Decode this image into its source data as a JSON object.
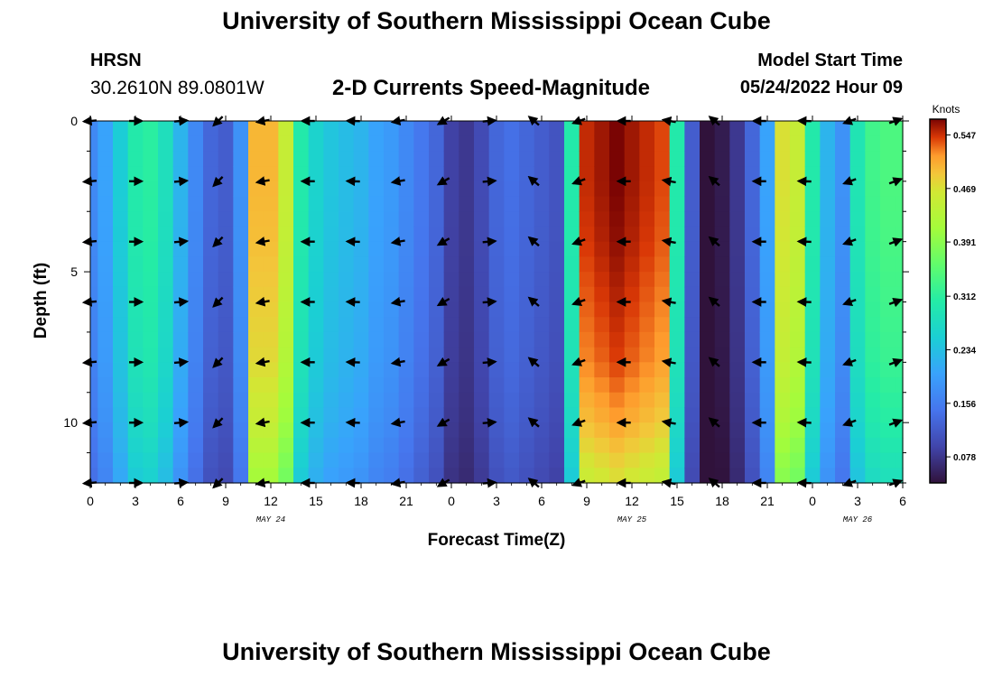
{
  "header": {
    "title": "University of Southern Mississippi Ocean Cube",
    "station_id": "HRSN",
    "station_coords": "30.2610N  89.0801W",
    "subtitle": "2-D Currents Speed-Magnitude",
    "model_start_label": "Model Start Time",
    "model_start_value": "05/24/2022 Hour 09"
  },
  "footer": {
    "title": "University of Southern Mississippi Ocean Cube"
  },
  "chart_data": {
    "type": "heatmap",
    "title": "2-D Currents Speed-Magnitude",
    "xlabel": "Forecast Time(Z)",
    "ylabel": "Depth (ft)",
    "x_range": [
      0,
      54
    ],
    "y_range": [
      0,
      12
    ],
    "y_inverted": true,
    "x_tick_labels": [
      "0",
      "3",
      "6",
      "9",
      "12",
      "15",
      "18",
      "21",
      "0",
      "3",
      "6",
      "9",
      "12",
      "15",
      "18",
      "21",
      "0",
      "3",
      "6"
    ],
    "y_tick_labels": [
      "0",
      "5",
      "10"
    ],
    "y_tick_values": [
      0,
      5,
      10
    ],
    "date_labels": [
      {
        "label": "MAY 24",
        "hour": 12
      },
      {
        "label": "MAY 25",
        "hour": 36
      },
      {
        "label": "MAY 26",
        "hour": 51
      }
    ],
    "colorbar": {
      "unit": "Knots",
      "min": 0.04,
      "max": 0.57,
      "tick_values": [
        0.547,
        0.469,
        0.391,
        0.312,
        0.234,
        0.156,
        0.078
      ],
      "tick_labels": [
        "0.547",
        "0.469",
        "0.391",
        "0.312",
        "0.234",
        "0.156",
        "0.078"
      ]
    },
    "speed_profile_knots": {
      "hours": [
        0,
        1,
        2,
        3,
        4,
        5,
        6,
        7,
        8,
        9,
        10,
        11,
        12,
        13,
        14,
        15,
        16,
        17,
        18,
        19,
        20,
        21,
        22,
        23,
        24,
        25,
        26,
        27,
        28,
        29,
        30,
        31,
        32,
        33,
        34,
        35,
        36,
        37,
        38,
        39,
        40,
        41,
        42,
        43,
        44,
        45,
        46,
        47,
        48,
        49,
        50,
        51,
        52,
        53,
        54
      ],
      "speed": [
        0.17,
        0.2,
        0.25,
        0.3,
        0.31,
        0.28,
        0.22,
        0.17,
        0.13,
        0.12,
        0.18,
        0.5,
        0.5,
        0.45,
        0.3,
        0.26,
        0.24,
        0.23,
        0.22,
        0.2,
        0.19,
        0.17,
        0.15,
        0.13,
        0.09,
        0.08,
        0.1,
        0.13,
        0.14,
        0.13,
        0.12,
        0.11,
        0.3,
        0.55,
        0.56,
        0.57,
        0.56,
        0.55,
        0.54,
        0.3,
        0.12,
        0.04,
        0.05,
        0.08,
        0.13,
        0.2,
        0.47,
        0.45,
        0.3,
        0.22,
        0.18,
        0.29,
        0.33,
        0.34,
        0.34
      ],
      "depth_factor_ft": [
        [
          0,
          1.0
        ],
        [
          2,
          1.0
        ],
        [
          4,
          0.99
        ],
        [
          6,
          0.97
        ],
        [
          8,
          0.95
        ],
        [
          10,
          0.9
        ],
        [
          12,
          0.82
        ]
      ]
    },
    "vectors": {
      "columns": [
        {
          "hour": 0,
          "angle_deg": 185
        },
        {
          "hour": 3,
          "angle_deg": 0
        },
        {
          "hour": 6,
          "angle_deg": 5
        },
        {
          "hour": 8.5,
          "angle_deg": 225
        },
        {
          "hour": 11.5,
          "angle_deg": 190
        },
        {
          "hour": 14.5,
          "angle_deg": 180
        },
        {
          "hour": 17.5,
          "angle_deg": 178
        },
        {
          "hour": 20.5,
          "angle_deg": 190
        },
        {
          "hour": 23.5,
          "angle_deg": 210
        },
        {
          "hour": 26.5,
          "angle_deg": 5
        },
        {
          "hour": 29.5,
          "angle_deg": 140
        },
        {
          "hour": 32.5,
          "angle_deg": 200
        },
        {
          "hour": 35.5,
          "angle_deg": 180
        },
        {
          "hour": 38.5,
          "angle_deg": 170
        },
        {
          "hour": 41.5,
          "angle_deg": 140
        },
        {
          "hour": 44.5,
          "angle_deg": 180
        },
        {
          "hour": 47.5,
          "angle_deg": 178
        },
        {
          "hour": 50.5,
          "angle_deg": 200
        },
        {
          "hour": 53.5,
          "angle_deg": 20
        }
      ],
      "depths_ft": [
        0,
        2,
        4,
        6,
        8,
        10,
        12
      ]
    }
  }
}
